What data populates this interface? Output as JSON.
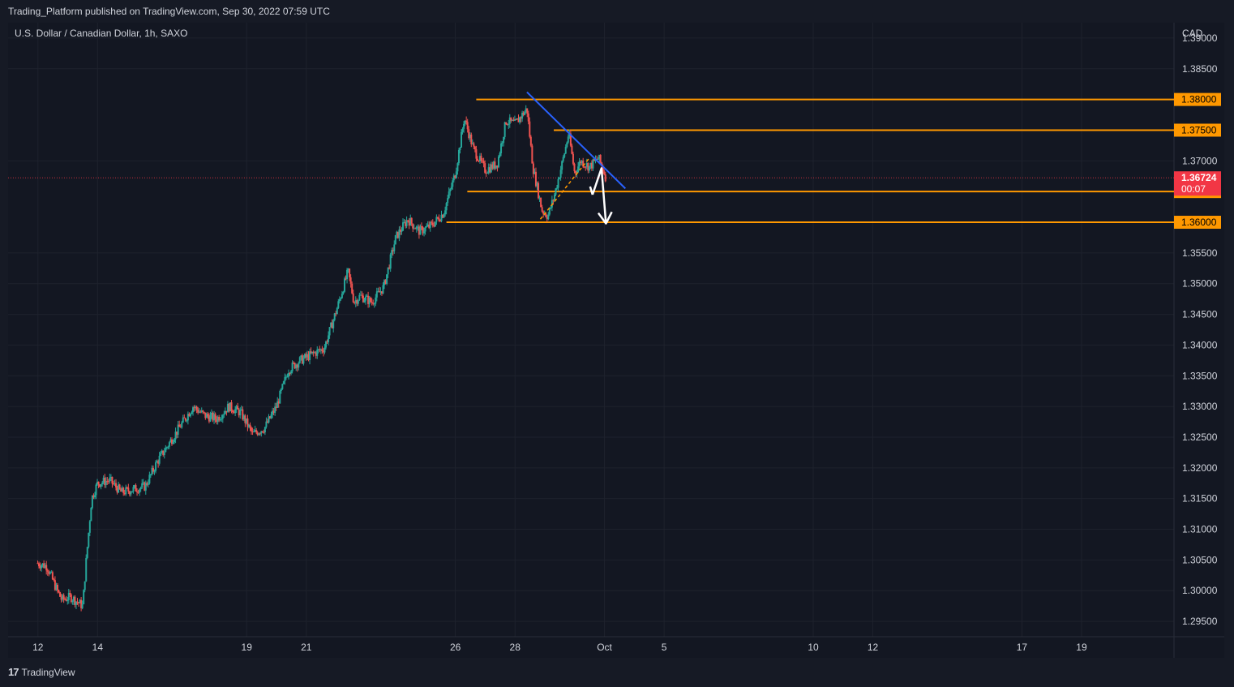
{
  "header": {
    "published": "Trading_Platform published on TradingView.com, Sep 30, 2022 07:59 UTC"
  },
  "footer": {
    "brand": "TradingView",
    "brand_mark": "17"
  },
  "colors": {
    "background": "#131722",
    "bull": "#26a69a",
    "bear": "#ef5350",
    "level": "#ff9800",
    "trendline": "#2962ff",
    "current_price": "#f23645",
    "arrow": "#ffffff"
  },
  "chart_data": {
    "type": "candlestick",
    "symbol_label": "U.S. Dollar / Canadian Dollar, 1h, SAXO",
    "currency": "CAD",
    "ylim": [
      1.2925,
      1.3925
    ],
    "grid": true,
    "y_ticks": [
      {
        "value": 1.39,
        "label": "1.39000"
      },
      {
        "value": 1.385,
        "label": "1.38500"
      },
      {
        "value": 1.37,
        "label": "1.37000"
      },
      {
        "value": 1.355,
        "label": "1.35500"
      },
      {
        "value": 1.35,
        "label": "1.35000"
      },
      {
        "value": 1.345,
        "label": "1.34500"
      },
      {
        "value": 1.34,
        "label": "1.34000"
      },
      {
        "value": 1.335,
        "label": "1.33500"
      },
      {
        "value": 1.33,
        "label": "1.33000"
      },
      {
        "value": 1.325,
        "label": "1.32500"
      },
      {
        "value": 1.32,
        "label": "1.32000"
      },
      {
        "value": 1.315,
        "label": "1.31500"
      },
      {
        "value": 1.31,
        "label": "1.31000"
      },
      {
        "value": 1.305,
        "label": "1.30500"
      },
      {
        "value": 1.3,
        "label": "1.30000"
      },
      {
        "value": 1.295,
        "label": "1.29500"
      }
    ],
    "x_ticks": [
      {
        "day": 12,
        "label": "12"
      },
      {
        "day": 14,
        "label": "14"
      },
      {
        "day": 19,
        "label": "19"
      },
      {
        "day": 21,
        "label": "21"
      },
      {
        "day": 26,
        "label": "26"
      },
      {
        "day": 28,
        "label": "28"
      },
      {
        "day": 31,
        "label": "Oct"
      },
      {
        "day": 33,
        "label": "5"
      },
      {
        "day": 38,
        "label": "10"
      },
      {
        "day": 40,
        "label": "12"
      },
      {
        "day": 45,
        "label": "17"
      },
      {
        "day": 47,
        "label": "19"
      }
    ],
    "levels": [
      {
        "price": 1.38,
        "label": "1.38000",
        "start_day": 26.7
      },
      {
        "price": 1.375,
        "label": "1.37500",
        "start_day": 29.3
      },
      {
        "price": 1.365,
        "label": "1.36500",
        "start_day": 26.4
      },
      {
        "price": 1.36,
        "label": "1.36000",
        "start_day": 25.7
      }
    ],
    "current_price": {
      "price": 1.36724,
      "label": "1.36724",
      "countdown": "00:07"
    },
    "trendline": [
      [
        28.4,
        1.3812
      ],
      [
        31.7,
        1.3655
      ]
    ],
    "support_dashed": [
      [
        28.85,
        1.3605
      ],
      [
        30.5,
        1.3705
      ]
    ],
    "projection_arrow": [
      [
        30.6,
        1.3645
      ],
      [
        30.9,
        1.3688
      ],
      [
        31.05,
        1.3598
      ]
    ],
    "candle_keypoints": [
      [
        11.95,
        1.3045
      ],
      [
        12.3,
        1.304
      ],
      [
        12.6,
        1.3005
      ],
      [
        12.8,
        1.2985
      ],
      [
        13.1,
        1.299
      ],
      [
        13.5,
        1.2975
      ],
      [
        13.62,
        1.305
      ],
      [
        13.8,
        1.315
      ],
      [
        14.0,
        1.3175
      ],
      [
        14.4,
        1.318
      ],
      [
        14.8,
        1.316
      ],
      [
        15.2,
        1.3165
      ],
      [
        15.6,
        1.317
      ],
      [
        16.0,
        1.321
      ],
      [
        16.4,
        1.324
      ],
      [
        16.8,
        1.327
      ],
      [
        17.2,
        1.33
      ],
      [
        17.6,
        1.3285
      ],
      [
        18.0,
        1.328
      ],
      [
        18.4,
        1.33
      ],
      [
        18.8,
        1.329
      ],
      [
        19.2,
        1.3255
      ],
      [
        19.6,
        1.3265
      ],
      [
        20.0,
        1.33
      ],
      [
        20.4,
        1.336
      ],
      [
        20.8,
        1.3375
      ],
      [
        21.2,
        1.3385
      ],
      [
        21.6,
        1.3395
      ],
      [
        22.0,
        1.3455
      ],
      [
        22.4,
        1.352
      ],
      [
        22.6,
        1.347
      ],
      [
        22.8,
        1.348
      ],
      [
        23.2,
        1.347
      ],
      [
        23.6,
        1.3495
      ],
      [
        24.0,
        1.3575
      ],
      [
        24.4,
        1.3605
      ],
      [
        24.8,
        1.3585
      ],
      [
        25.2,
        1.3595
      ],
      [
        25.6,
        1.3615
      ],
      [
        26.0,
        1.368
      ],
      [
        26.3,
        1.377
      ],
      [
        26.6,
        1.372
      ],
      [
        27.0,
        1.3685
      ],
      [
        27.4,
        1.3695
      ],
      [
        27.7,
        1.3765
      ],
      [
        28.0,
        1.376
      ],
      [
        28.4,
        1.3785
      ],
      [
        28.6,
        1.369
      ],
      [
        28.9,
        1.362
      ],
      [
        29.1,
        1.361
      ],
      [
        29.3,
        1.364
      ],
      [
        29.6,
        1.37
      ],
      [
        29.8,
        1.3745
      ],
      [
        30.0,
        1.368
      ],
      [
        30.2,
        1.37
      ],
      [
        30.5,
        1.369
      ],
      [
        30.8,
        1.3705
      ],
      [
        31.0,
        1.368
      ],
      [
        31.05,
        1.3672
      ]
    ]
  }
}
